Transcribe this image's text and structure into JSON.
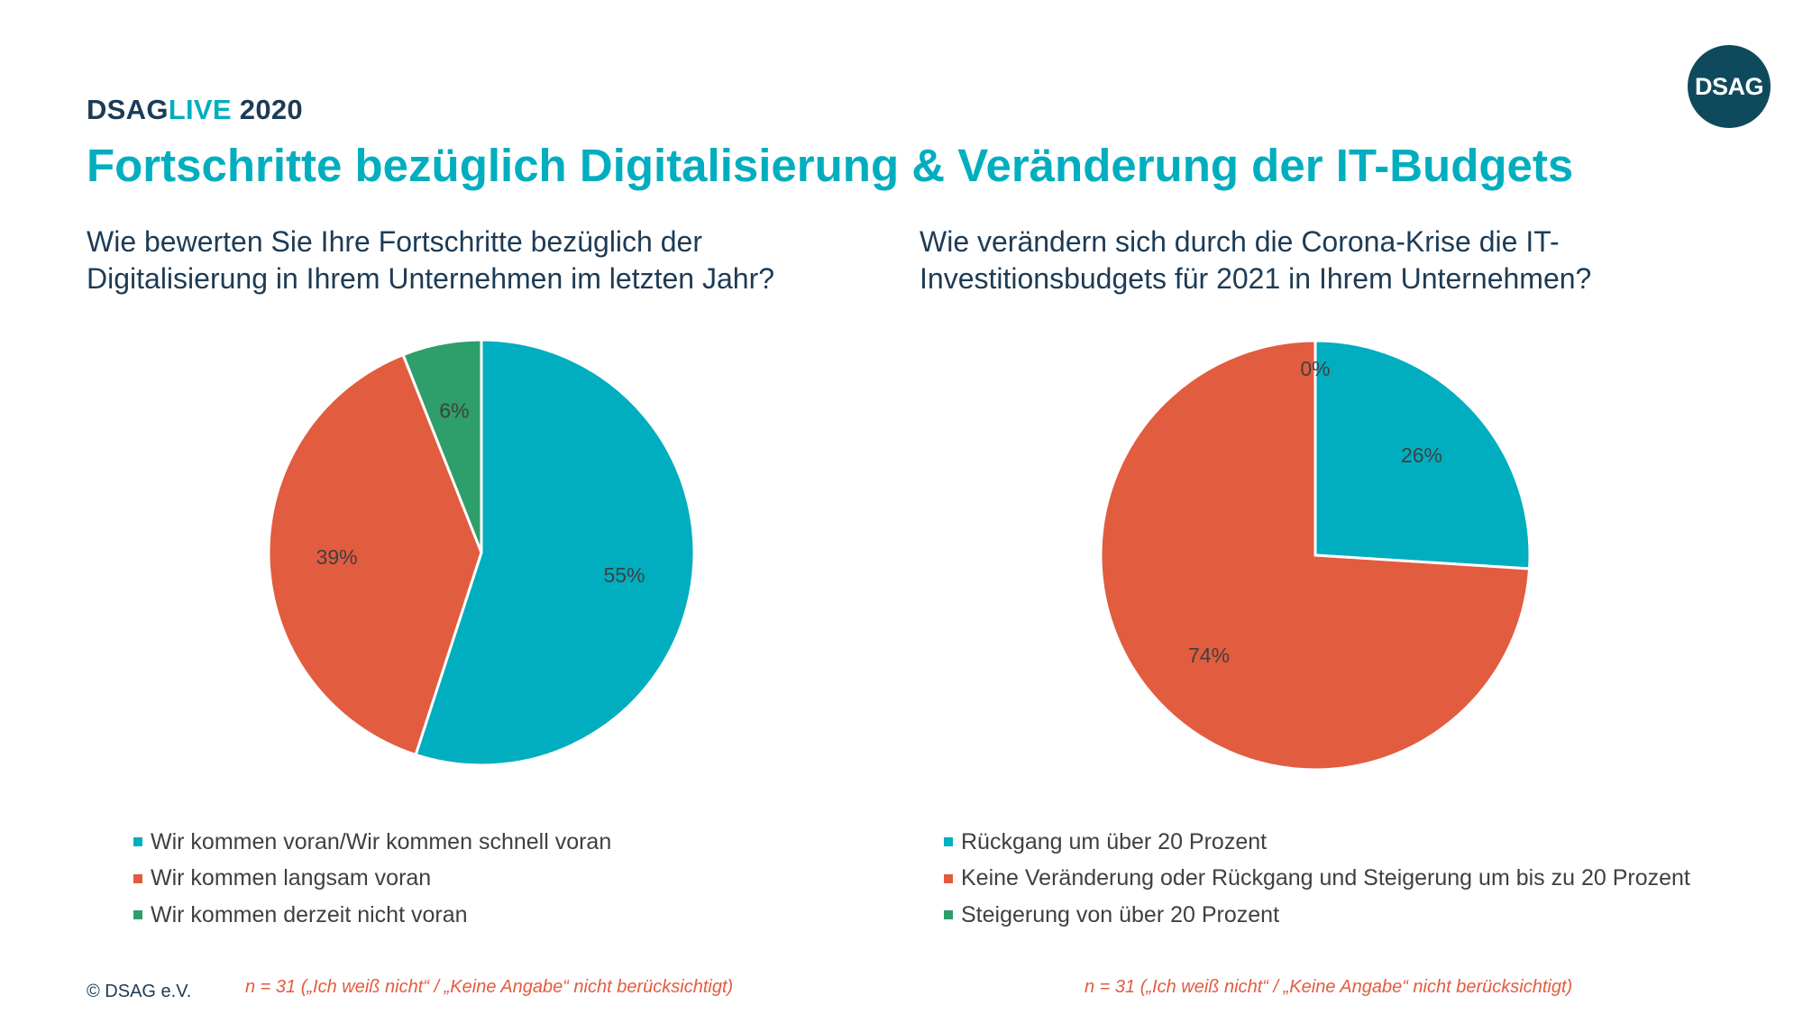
{
  "header": {
    "brand_dsag": "DSAG",
    "brand_live": "LIVE",
    "brand_year": "2020",
    "logo_text": "DSAG",
    "title": "Fortschritte bezüglich Digitalisierung & Veränderung der IT-Budgets"
  },
  "colors": {
    "teal": "#00aebf",
    "red": "#e25c3f",
    "green": "#2e9e6a",
    "navy": "#1d3b55"
  },
  "chart_data": [
    {
      "type": "pie",
      "title": "Wie bewerten Sie Ihre Fortschritte bezüglich der\nDigitalisierung in Ihrem Unternehmen im letzten Jahr?",
      "legend_position": "bottom",
      "slices": [
        {
          "label": "Wir kommen voran/Wir kommen schnell voran",
          "value": 55,
          "display": "55%",
          "color": "#00aebf"
        },
        {
          "label": "Wir kommen langsam voran",
          "value": 39,
          "display": "39%",
          "color": "#e25c3f"
        },
        {
          "label": "Wir kommen derzeit nicht voran",
          "value": 6,
          "display": "6%",
          "color": "#2e9e6a"
        }
      ],
      "note": "n = 31 („Ich weiß nicht“ / „Keine Angabe“ nicht berücksichtigt)"
    },
    {
      "type": "pie",
      "title": "Wie verändern sich durch die Corona-Krise die IT-\nInvestitionsbudgets für 2021 in Ihrem Unternehmen?",
      "legend_position": "bottom",
      "slices": [
        {
          "label": "Rückgang um über 20 Prozent",
          "value": 26,
          "display": "26%",
          "color": "#00aebf"
        },
        {
          "label": "Keine Veränderung oder Rückgang und Steigerung um bis zu 20 Prozent",
          "value": 74,
          "display": "74%",
          "color": "#e25c3f"
        },
        {
          "label": "Steigerung von über 20 Prozent",
          "value": 0,
          "display": "0%",
          "color": "#2e9e6a"
        }
      ],
      "note": "n = 31 („Ich weiß nicht“ / „Keine Angabe“ nicht berücksichtigt)"
    }
  ],
  "footer": {
    "copyright": "© DSAG e.V."
  }
}
